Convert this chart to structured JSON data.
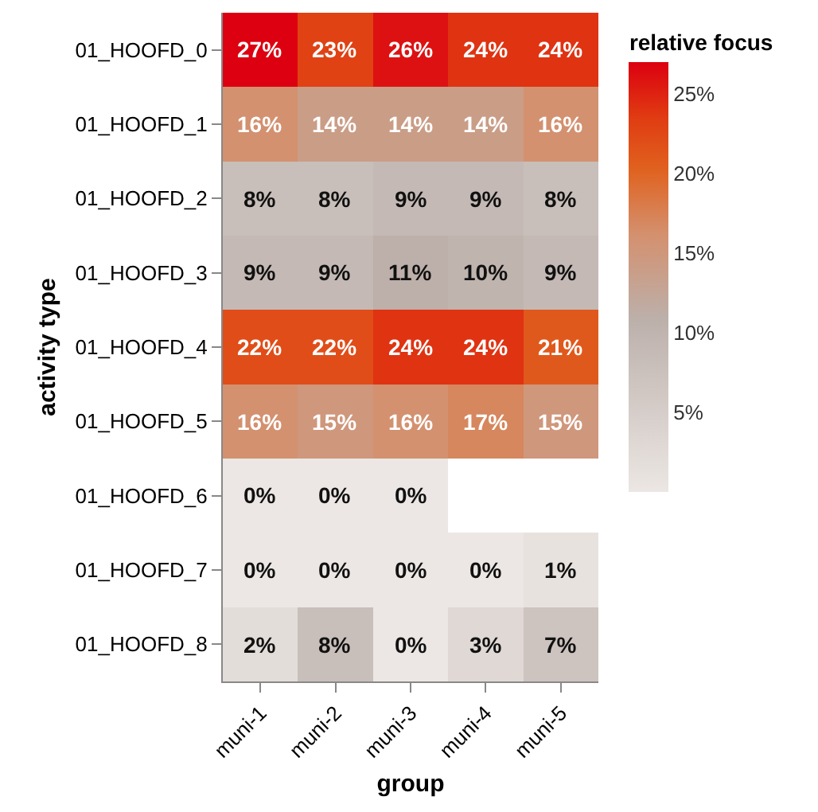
{
  "chart_data": {
    "type": "heatmap",
    "xlabel": "group",
    "ylabel": "activity type",
    "clabel": "relative focus",
    "categories": [
      "muni-1",
      "muni-2",
      "muni-3",
      "muni-4",
      "muni-5"
    ],
    "y_categories": [
      "01_HOOFD_0",
      "01_HOOFD_1",
      "01_HOOFD_2",
      "01_HOOFD_3",
      "01_HOOFD_4",
      "01_HOOFD_5",
      "01_HOOFD_6",
      "01_HOOFD_7",
      "01_HOOFD_8"
    ],
    "cells": [
      [
        27,
        23,
        26,
        24,
        24
      ],
      [
        16,
        14,
        14,
        14,
        16
      ],
      [
        8,
        8,
        9,
        9,
        8
      ],
      [
        9,
        9,
        11,
        10,
        9
      ],
      [
        22,
        22,
        24,
        24,
        21
      ],
      [
        16,
        15,
        16,
        17,
        15
      ],
      [
        0,
        0,
        0,
        null,
        null
      ],
      [
        0,
        0,
        0,
        0,
        1
      ],
      [
        2,
        8,
        0,
        3,
        7
      ]
    ],
    "cell_labels": [
      [
        "27%",
        "23%",
        "26%",
        "24%",
        "24%"
      ],
      [
        "16%",
        "14%",
        "14%",
        "14%",
        "16%"
      ],
      [
        "8%",
        "8%",
        "9%",
        "9%",
        "8%"
      ],
      [
        "9%",
        "9%",
        "11%",
        "10%",
        "9%"
      ],
      [
        "22%",
        "22%",
        "24%",
        "24%",
        "21%"
      ],
      [
        "16%",
        "15%",
        "16%",
        "17%",
        "15%"
      ],
      [
        "0%",
        "0%",
        "0%",
        null,
        null
      ],
      [
        "0%",
        "0%",
        "0%",
        "0%",
        "1%"
      ],
      [
        "2%",
        "8%",
        "0%",
        "3%",
        "7%"
      ]
    ],
    "clim": [
      0,
      27
    ],
    "cticks": [
      {
        "value": 5,
        "label": "5%"
      },
      {
        "value": 10,
        "label": "10%"
      },
      {
        "value": 15,
        "label": "15%"
      },
      {
        "value": 20,
        "label": "20%"
      },
      {
        "value": 25,
        "label": "25%"
      }
    ]
  }
}
